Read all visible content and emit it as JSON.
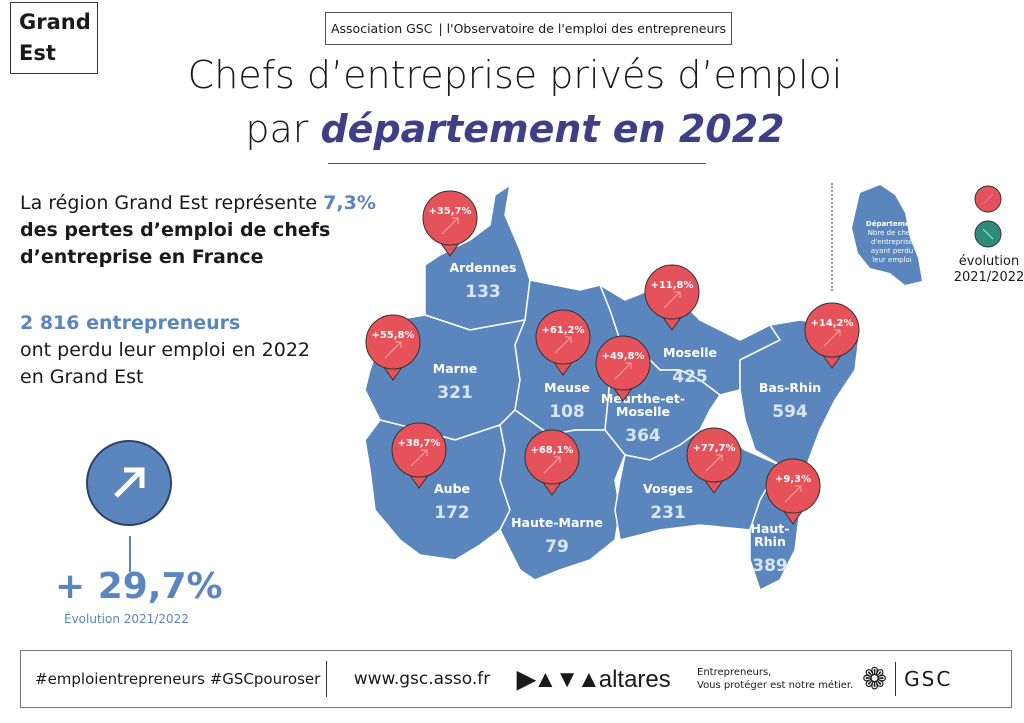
{
  "region_badge": "Grand Est",
  "header": {
    "org": "Association GSC",
    "subtitle": "| l'Observatoire de l'emploi des entrepreneurs"
  },
  "title": {
    "line1": "Chefs d’entreprise privés d’emploi",
    "line2_prefix": "par ",
    "line2_em": "département en 2022"
  },
  "intro": {
    "text1": "La région Grand Est représente ",
    "share": "7,3%",
    "text2": "des pertes d’emploi de chefs",
    "text3": "d’entreprise en France"
  },
  "total": {
    "highlight": "2 816 entrepreneurs",
    "line2": "ont perdu leur emploi en 2022",
    "line3": "en Grand Est"
  },
  "evolution": {
    "value": "+ 29,7%",
    "label": "Évolution 2021/2022",
    "icon": "arrow-up-right-icon"
  },
  "legend": {
    "dept": "Département",
    "desc": [
      "Nbre de chefs",
      "d'entreprise",
      "ayant perdu",
      "leur emploi"
    ],
    "evo1": "évolution",
    "evo2": "2021/2022",
    "up_color": "#e5525a",
    "down_color": "#2f8a7c"
  },
  "colors": {
    "map": "#5a86bd",
    "pin": "#e5525a",
    "accent": "#3f3f86"
  },
  "departments": [
    {
      "name": "Ardennes",
      "value": "133",
      "evolution": "+35,7%"
    },
    {
      "name": "Marne",
      "value": "321",
      "evolution": "+55,8%"
    },
    {
      "name": "Meuse",
      "value": "108",
      "evolution": "+61,2%"
    },
    {
      "name": "Moselle",
      "value": "425",
      "evolution": "+11,8%"
    },
    {
      "name": "Meurthe-et-Moselle",
      "value": "364",
      "evolution": "+49,8%"
    },
    {
      "name": "Bas-Rhin",
      "value": "594",
      "evolution": "+14,2%"
    },
    {
      "name": "Aube",
      "value": "172",
      "evolution": "+38,7%"
    },
    {
      "name": "Haute-Marne",
      "value": "79",
      "evolution": "+68,1%"
    },
    {
      "name": "Vosges",
      "value": "231",
      "evolution": "+77,7%"
    },
    {
      "name": "Haut-Rhin",
      "value": "389",
      "evolution": "+9,3%"
    }
  ],
  "footer": {
    "hashtags": "#emploientrepreneurs #GSCpouroser",
    "url": "www.gsc.asso.fr",
    "partner": "altares",
    "tagline1": "Entrepreneurs,",
    "tagline2": "Vous protéger est notre métier.",
    "brand": "GSC"
  }
}
